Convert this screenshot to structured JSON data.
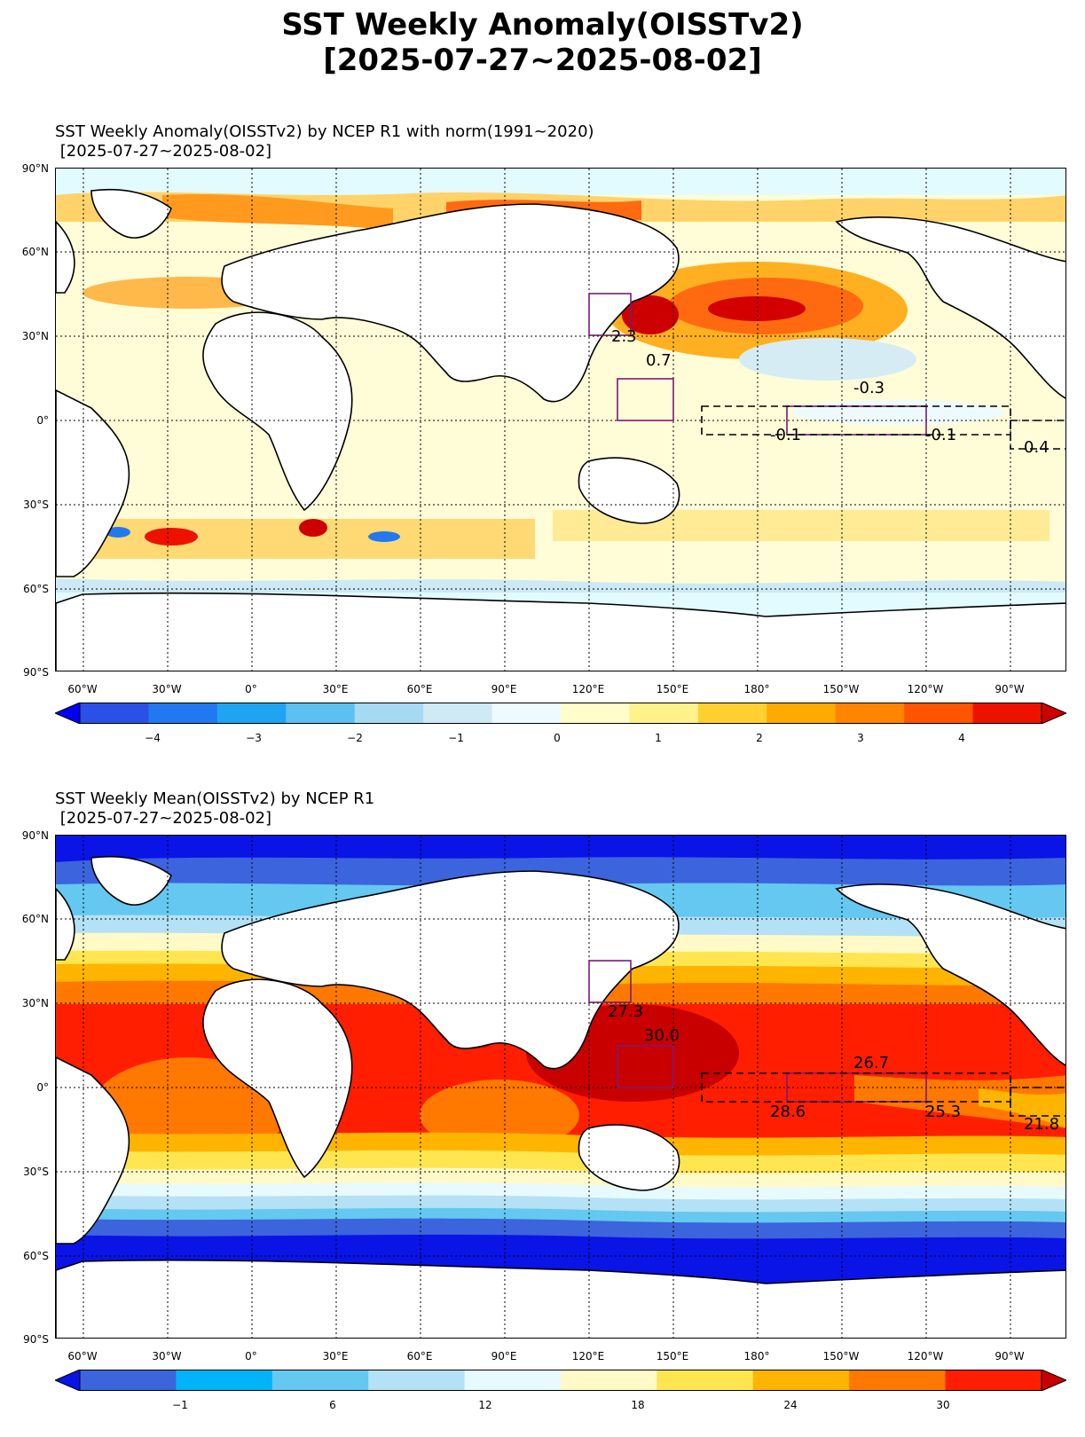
{
  "title_line1": "SST Weekly Anomaly(OISSTv2)",
  "title_line2": "[2025-07-27~2025-08-02]",
  "panels": [
    {
      "title_line1": "SST Weekly Anomaly(OISSTv2) by NCEP R1 with norm(1991~2020)",
      "title_line2": " [2025-07-27~2025-08-02]",
      "lat_labels": [
        "90°N",
        "60°N",
        "30°N",
        "0°",
        "30°S",
        "60°S",
        "90°S"
      ],
      "lon_labels": [
        "60°W",
        "30°W",
        "0°",
        "30°E",
        "60°E",
        "90°E",
        "120°E",
        "150°E",
        "180°",
        "150°W",
        "120°W",
        "90°W"
      ],
      "colorbar": {
        "ticks": [
          "−4",
          "−3",
          "−2",
          "−1",
          "0",
          "1",
          "2",
          "3",
          "4"
        ],
        "colors": [
          "#0000f5",
          "#2b50e6",
          "#2278f0",
          "#20a4f2",
          "#5cc0f0",
          "#a6d9f2",
          "#cfe9f5",
          "#eefbfe",
          "#fffecb",
          "#fff28a",
          "#ffd030",
          "#ffaa00",
          "#ff8400",
          "#ff5500",
          "#ee1100",
          "#cc0000"
        ]
      },
      "box_values": [
        "2.3",
        "0.7",
        "-0.3",
        "-0.1",
        "-0.1",
        "0.4"
      ]
    },
    {
      "title_line1": "SST Weekly Mean(OISSTv2) by NCEP R1",
      "title_line2": " [2025-07-27~2025-08-02]",
      "lat_labels": [
        "90°N",
        "60°N",
        "30°N",
        "0°",
        "30°S",
        "60°S",
        "90°S"
      ],
      "lon_labels": [
        "60°W",
        "30°W",
        "0°",
        "30°E",
        "60°E",
        "90°E",
        "120°E",
        "150°E",
        "180°",
        "150°W",
        "120°W",
        "90°W"
      ],
      "colorbar": {
        "ticks": [
          "−1",
          "6",
          "12",
          "18",
          "24",
          "30"
        ],
        "colors": [
          "#0a14e6",
          "#3c64dc",
          "#00b4fa",
          "#64c8f0",
          "#b4e1f5",
          "#e6faff",
          "#fffac8",
          "#ffe650",
          "#ffb400",
          "#ff7800",
          "#ff1e00",
          "#c80000"
        ]
      },
      "box_values": [
        "27.3",
        "30.0",
        "26.7",
        "28.6",
        "25.3",
        "21.8"
      ]
    }
  ]
}
